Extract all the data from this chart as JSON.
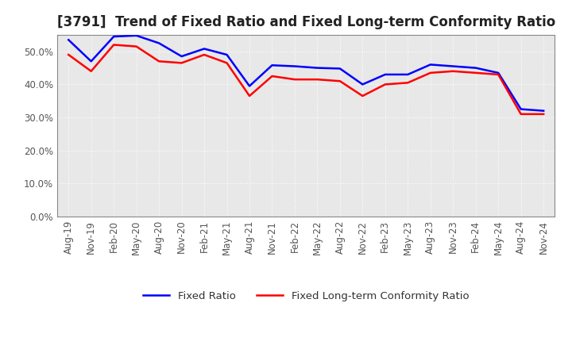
{
  "title": "[3791]  Trend of Fixed Ratio and Fixed Long-term Conformity Ratio",
  "x_labels": [
    "Aug-19",
    "Nov-19",
    "Feb-20",
    "May-20",
    "Aug-20",
    "Nov-20",
    "Feb-21",
    "May-21",
    "Aug-21",
    "Nov-21",
    "Feb-22",
    "May-22",
    "Aug-22",
    "Nov-22",
    "Feb-23",
    "May-23",
    "Aug-23",
    "Nov-23",
    "Feb-24",
    "May-24",
    "Aug-24",
    "Nov-24"
  ],
  "fixed_ratio": [
    53.5,
    47.0,
    54.5,
    54.8,
    52.5,
    48.5,
    50.8,
    49.0,
    39.5,
    45.8,
    45.5,
    45.0,
    44.8,
    40.0,
    43.0,
    43.0,
    46.0,
    45.5,
    45.0,
    43.5,
    32.5,
    32.0
  ],
  "fixed_lt_ratio": [
    49.0,
    44.0,
    52.0,
    51.5,
    47.0,
    46.5,
    49.0,
    46.5,
    36.5,
    42.5,
    41.5,
    41.5,
    41.0,
    36.5,
    40.0,
    40.5,
    43.5,
    44.0,
    43.5,
    43.0,
    31.0,
    31.0
  ],
  "fixed_ratio_color": "#0000FF",
  "fixed_lt_ratio_color": "#FF0000",
  "ylim": [
    0,
    55
  ],
  "yticks": [
    0.0,
    10.0,
    20.0,
    30.0,
    40.0,
    50.0
  ],
  "plot_bg_color": "#E8E8E8",
  "fig_bg_color": "#FFFFFF",
  "grid_color": "#FFFFFF",
  "spine_color": "#888888",
  "tick_color": "#555555",
  "line_width": 1.8,
  "title_fontsize": 12,
  "tick_fontsize": 8.5,
  "legend_fontsize": 9.5
}
